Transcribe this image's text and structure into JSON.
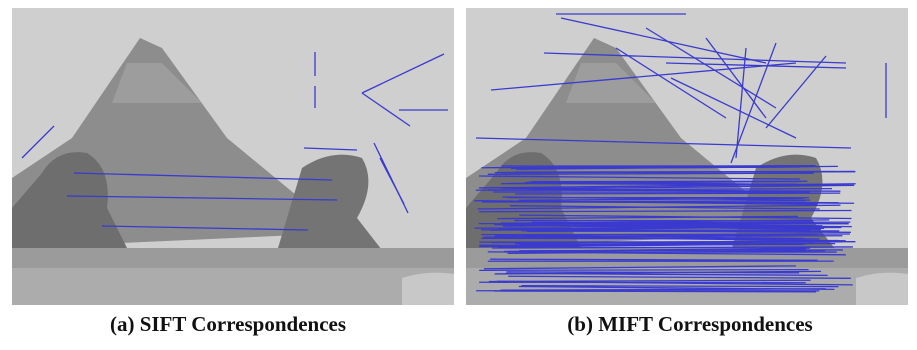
{
  "figure": {
    "captions": [
      "(a) SIFT Correspondences",
      "(b) MIFT Correspondences"
    ]
  }
}
